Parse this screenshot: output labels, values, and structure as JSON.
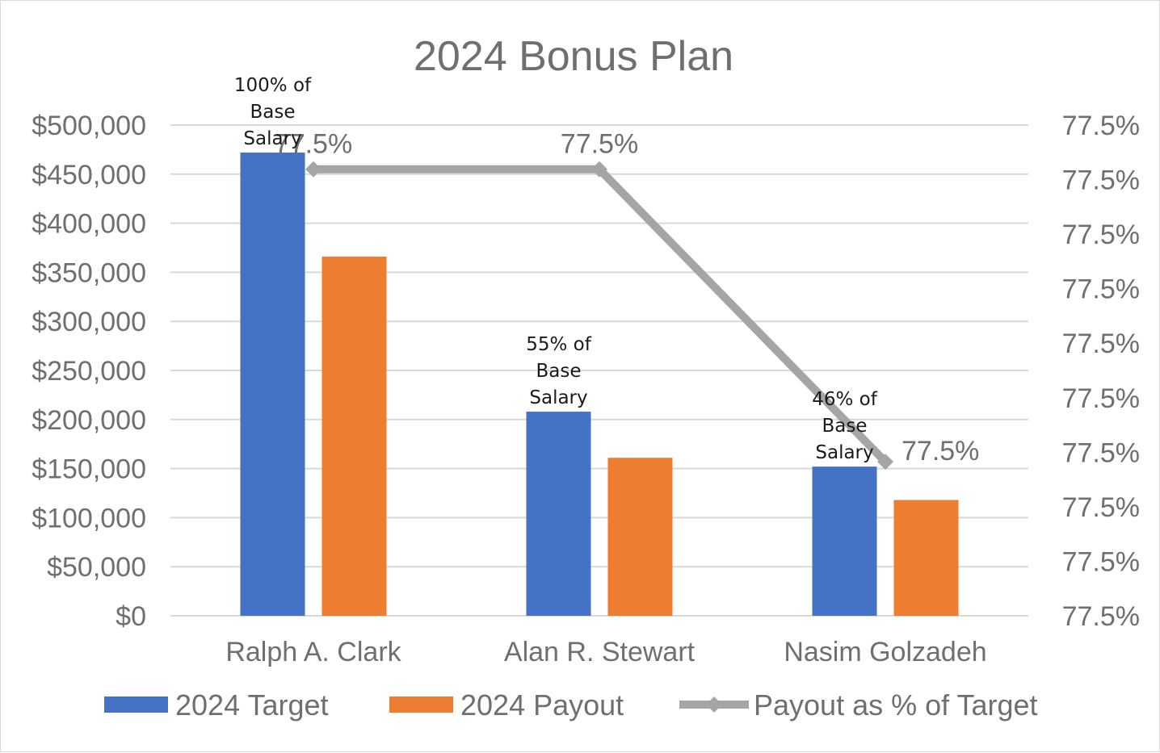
{
  "chart_data": {
    "type": "bar",
    "title": "2024 Bonus Plan",
    "categories": [
      "Ralph A. Clark",
      "Alan R. Stewart",
      "Nasim Golzadeh"
    ],
    "series": [
      {
        "name": "2024 Target",
        "type": "bar",
        "axis": "left",
        "color": "#4472c4",
        "values": [
          472000,
          208000,
          152000
        ]
      },
      {
        "name": "2024 Payout",
        "type": "bar",
        "axis": "left",
        "color": "#ed7d31",
        "values": [
          366000,
          161000,
          118000
        ]
      },
      {
        "name": "Payout as % of Target",
        "type": "line",
        "axis": "right",
        "color": "#a5a5a5",
        "values": [
          77.5,
          77.5,
          77.5
        ],
        "labels": [
          "77.5%",
          "77.5%",
          "77.5%"
        ],
        "label_positions": [
          455,
          455,
          157
        ]
      }
    ],
    "bar_annotations": [
      {
        "lines": [
          "100% of",
          "Base",
          "Salary"
        ]
      },
      {
        "lines": [
          "55% of",
          "Base",
          "Salary"
        ]
      },
      {
        "lines": [
          "46% of",
          "Base",
          "Salary"
        ]
      }
    ],
    "ylim": [
      0,
      500000
    ],
    "yticks": [
      "$0",
      "$50,000",
      "$100,000",
      "$150,000",
      "$200,000",
      "$250,000",
      "$300,000",
      "$350,000",
      "$400,000",
      "$450,000",
      "$500,000"
    ],
    "y2ticks": [
      "77.5%",
      "77.5%",
      "77.5%",
      "77.5%",
      "77.5%",
      "77.5%",
      "77.5%",
      "77.5%",
      "77.5%",
      "77.5%"
    ],
    "grid": true,
    "legend_position": "bottom"
  }
}
